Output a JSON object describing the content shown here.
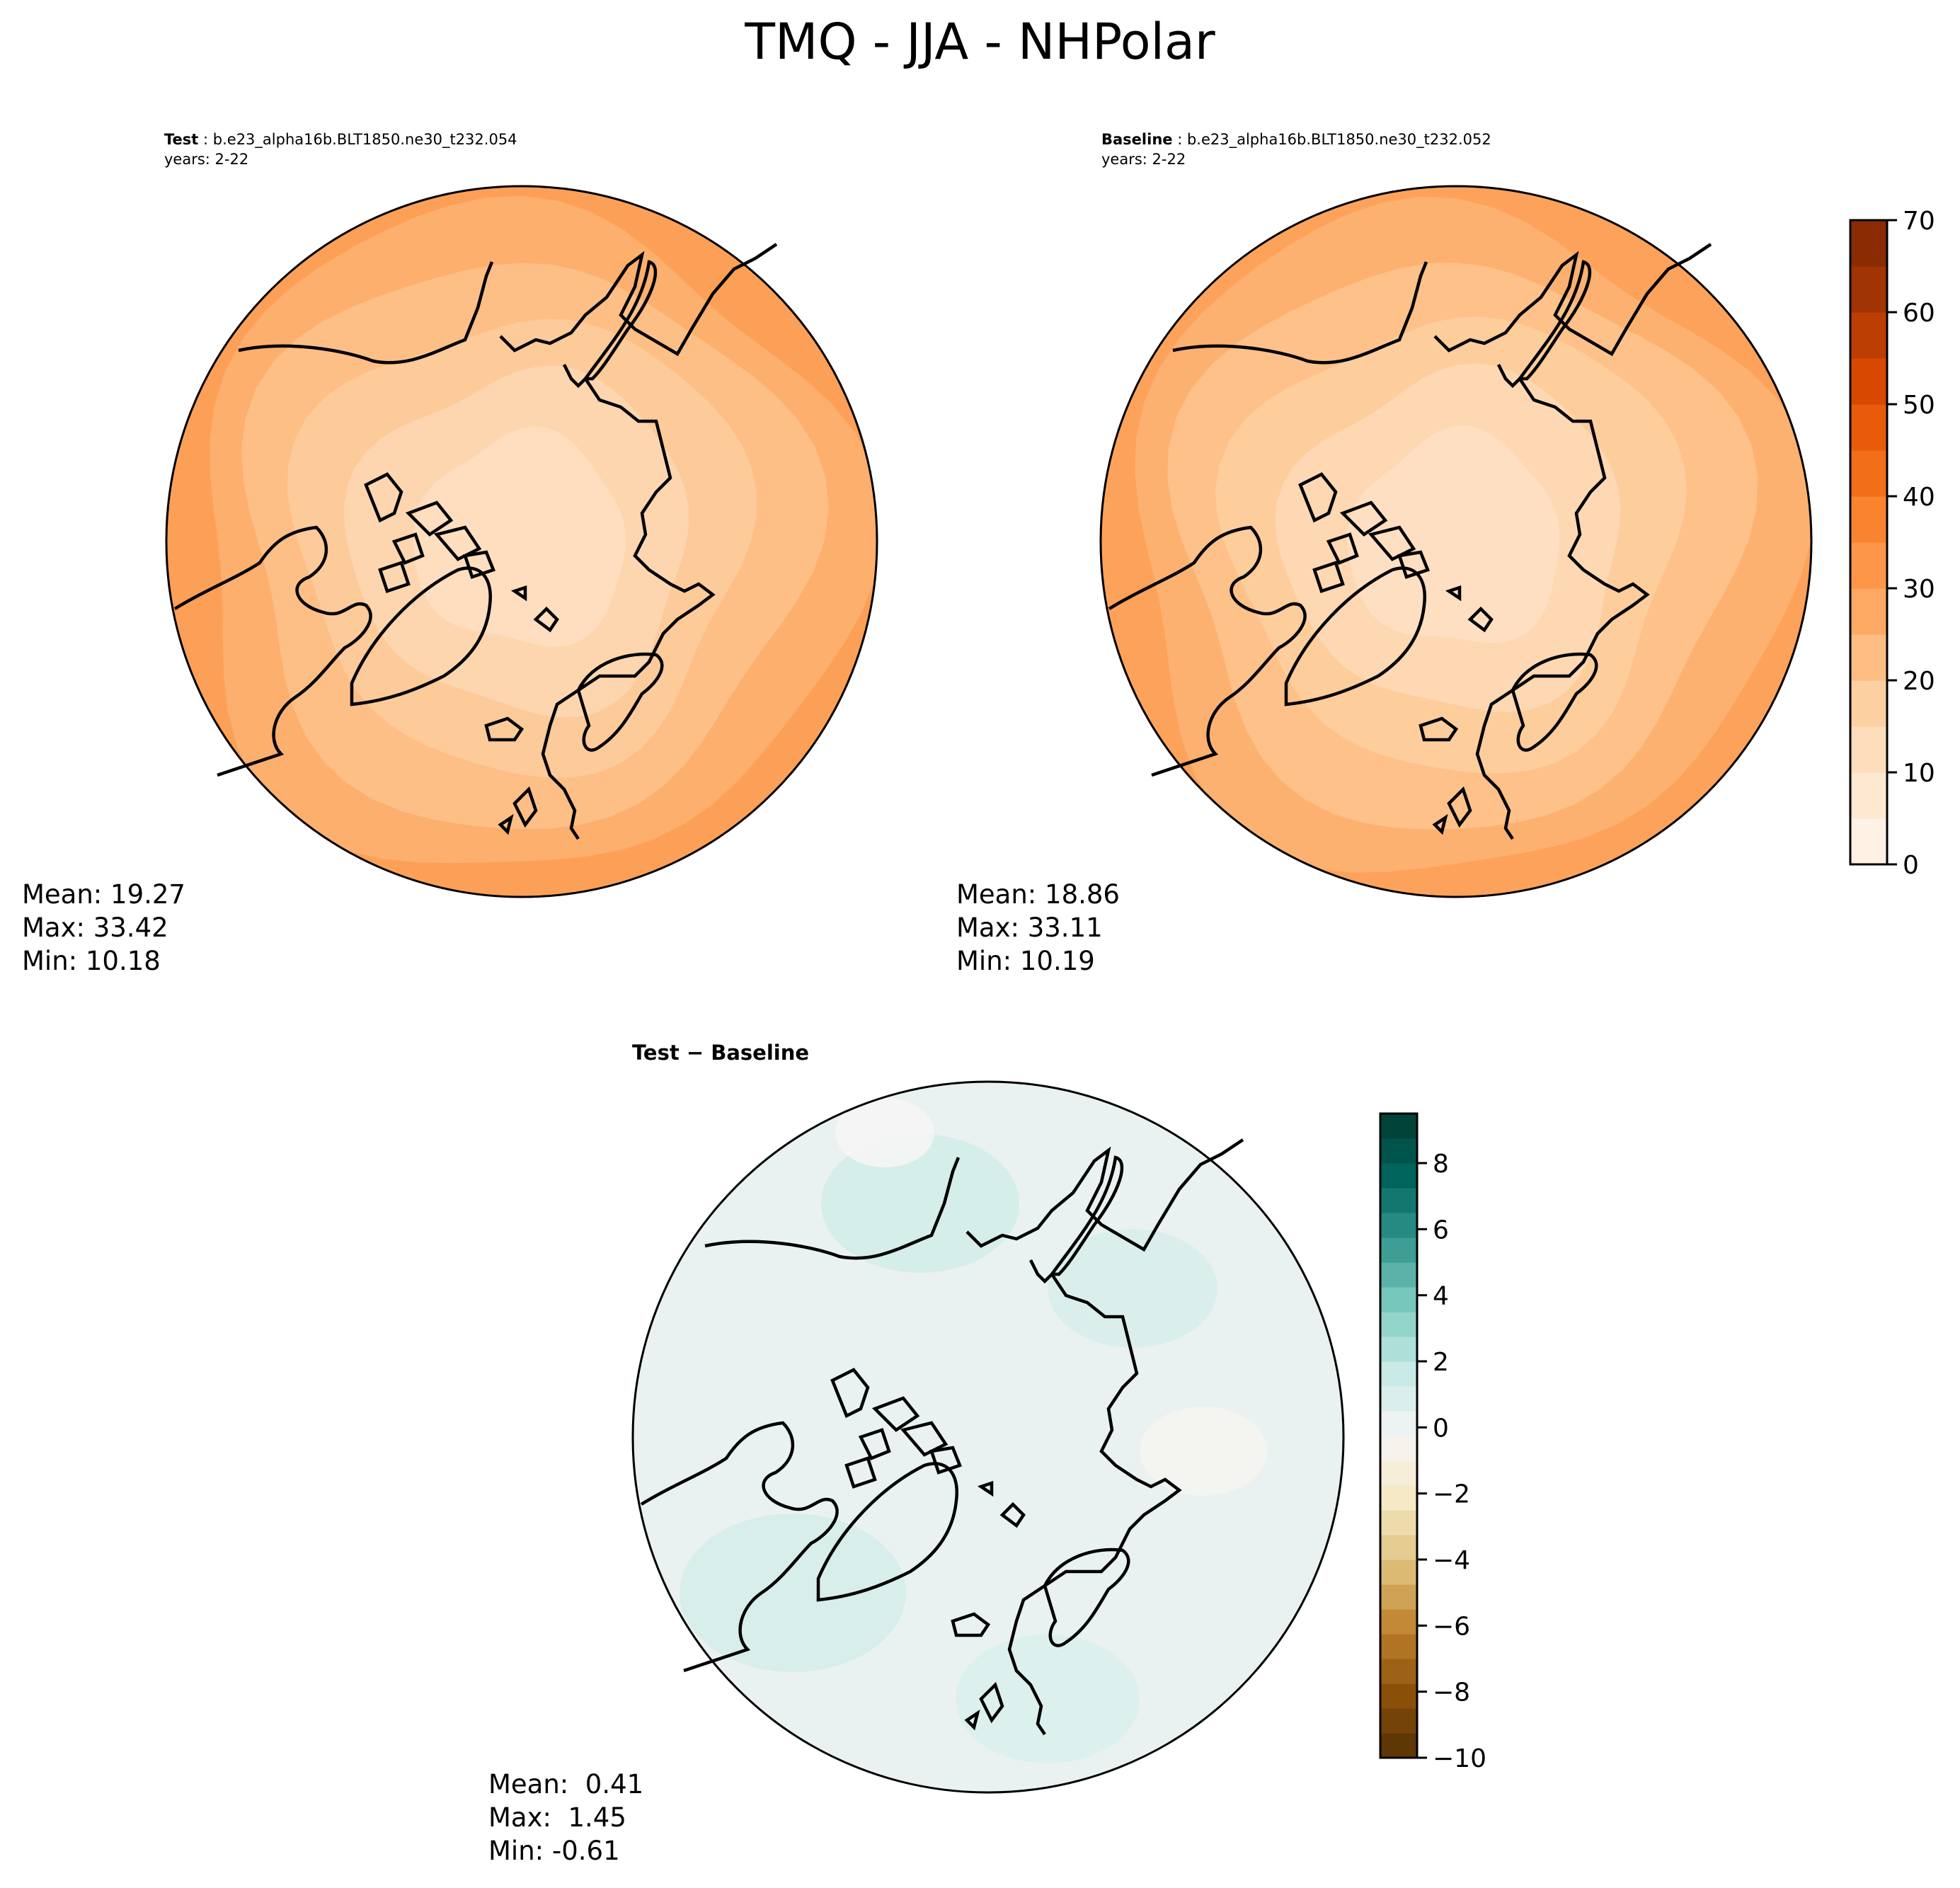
{
  "figure": {
    "title": "TMQ - JJA - NHPolar"
  },
  "panels": [
    {
      "id": "test",
      "label": "Test",
      "case": "b.e23_alpha16b.BLT1850.ne30_t232.054",
      "years": "years: 2-22",
      "stats": {
        "mean": "Mean: 19.27",
        "max": "Max: 33.42",
        "min": "Min: 10.18"
      }
    },
    {
      "id": "baseline",
      "label": "Baseline",
      "case": "b.e23_alpha16b.BLT1850.ne30_t232.052",
      "years": "years: 2-22",
      "stats": {
        "mean": "Mean: 18.86",
        "max": "Max: 33.11",
        "min": "Min: 10.19"
      }
    },
    {
      "id": "difference",
      "label": "Test − Baseline",
      "stats": {
        "mean": "Mean:  0.41",
        "max": "Max:  1.45",
        "min": "Min: -0.61"
      }
    }
  ],
  "chart_data": [
    {
      "type": "heatmap",
      "title": "TMQ - JJA - NHPolar",
      "panel": "Test",
      "projection": "north-polar-stereographic",
      "colormap": "Oranges",
      "colorbar": {
        "levels_min": 0,
        "levels_max": 70,
        "step": 5,
        "ticks": [
          0,
          10,
          20,
          30,
          40,
          50,
          60,
          70
        ],
        "shared_with": "Baseline"
      },
      "summary": {
        "mean": 19.27,
        "max": 33.42,
        "min": 10.18
      }
    },
    {
      "type": "heatmap",
      "title": "TMQ - JJA - NHPolar",
      "panel": "Baseline",
      "projection": "north-polar-stereographic",
      "colormap": "Oranges",
      "colorbar": {
        "levels_min": 0,
        "levels_max": 70,
        "step": 5,
        "ticks": [
          0,
          10,
          20,
          30,
          40,
          50,
          60,
          70
        ]
      },
      "summary": {
        "mean": 18.86,
        "max": 33.11,
        "min": 10.19
      }
    },
    {
      "type": "heatmap",
      "title": "TMQ - JJA - NHPolar",
      "panel": "Test − Baseline",
      "projection": "north-polar-stereographic",
      "colormap": "BrBG",
      "colorbar": {
        "levels_min": -10,
        "levels_max": 9.5,
        "ticks": [
          -10,
          -8,
          -6,
          -4,
          -2,
          0,
          2,
          4,
          6,
          8
        ],
        "tick_labels": [
          "−10",
          "−8",
          "−6",
          "−4",
          "−2",
          "0",
          "2",
          "4",
          "6",
          "8"
        ]
      },
      "summary": {
        "mean": 0.41,
        "max": 1.45,
        "min": -0.61
      }
    }
  ],
  "colors": {
    "oranges": [
      "#fff5eb",
      "#fee6ce",
      "#fdd0a2",
      "#fdae6b",
      "#fd8d3c",
      "#f16913",
      "#d94801",
      "#a63603",
      "#7f2704"
    ],
    "brbg": [
      "#543005",
      "#8c510a",
      "#bf812d",
      "#dfc27d",
      "#f6e8c3",
      "#f5f5f5",
      "#c7eae5",
      "#80cdc1",
      "#35978f",
      "#01665e",
      "#003c30"
    ]
  }
}
